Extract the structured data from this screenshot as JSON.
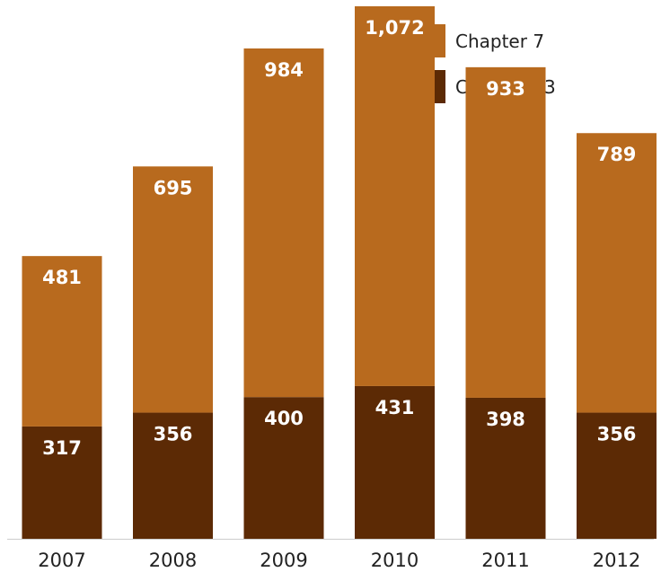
{
  "chart_data": {
    "type": "bar",
    "stacked": true,
    "categories": [
      "2007",
      "2008",
      "2009",
      "2010",
      "2011",
      "2012"
    ],
    "series": [
      {
        "name": "Chapter 13",
        "values": [
          317,
          356,
          400,
          431,
          398,
          356
        ],
        "labels": [
          "317",
          "356",
          "400",
          "431",
          "398",
          "356"
        ],
        "color": "#5c2a05"
      },
      {
        "name": "Chapter 7",
        "values": [
          481,
          695,
          984,
          1072,
          933,
          789
        ],
        "labels": [
          "481",
          "695",
          "984",
          "1,072",
          "933",
          "789"
        ],
        "color": "#b86a1e"
      }
    ],
    "legend_order": [
      "Chapter 7",
      "Chapter 13"
    ],
    "legend_position": "top-right",
    "grid": false,
    "ylim": [
      0,
      1503
    ],
    "baseline_color": "#cccccc",
    "title": "",
    "xlabel": "",
    "ylabel": ""
  }
}
